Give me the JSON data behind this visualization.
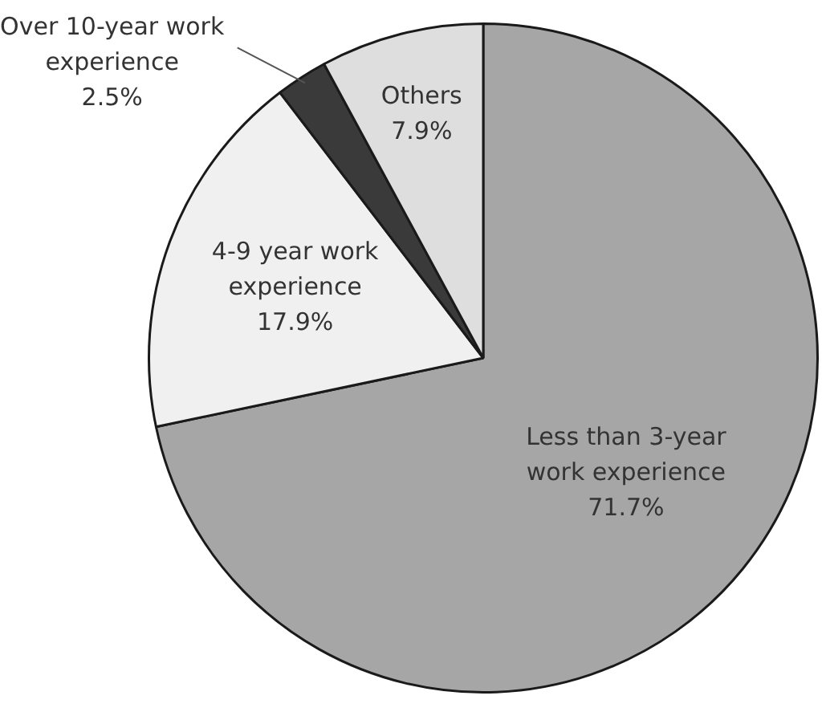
{
  "chart_data": {
    "type": "pie",
    "categories": [
      "Less than 3-year work experience",
      "4-9 year work experience",
      "Over 10-year work experience",
      "Others"
    ],
    "values": [
      71.7,
      17.9,
      2.5,
      7.9
    ],
    "value_labels": [
      "71.7%",
      "17.9%",
      "2.5%",
      "7.9%"
    ],
    "colors": [
      "#a6a6a6",
      "#f0f0f0",
      "#3a3a3a",
      "#dedede"
    ],
    "legend": false
  }
}
